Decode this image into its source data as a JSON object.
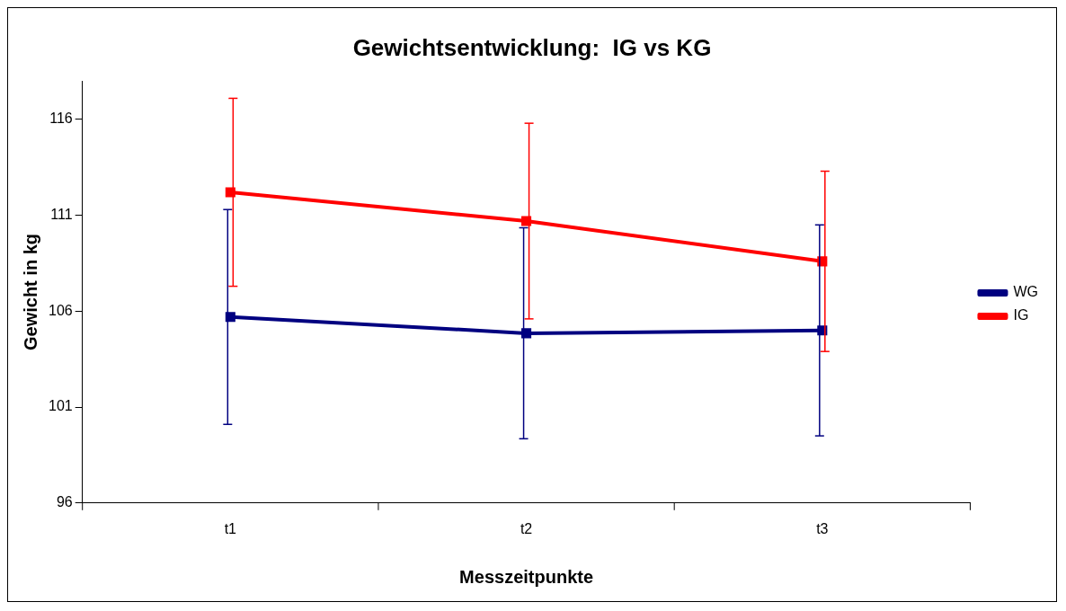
{
  "chart_data": {
    "type": "line",
    "title": "Gewichtsentwicklung:  IG vs KG",
    "xlabel": "Messzeitpunkte",
    "ylabel": "Gewicht in kg",
    "categories": [
      "t1",
      "t2",
      "t3"
    ],
    "series": [
      {
        "name": "WG",
        "color": "#000080",
        "values": [
          105.7,
          104.85,
          105.0
        ],
        "errors": [
          5.6,
          5.5,
          5.5
        ]
      },
      {
        "name": "IG",
        "color": "#ff0000",
        "values": [
          112.2,
          110.7,
          108.6
        ],
        "errors": [
          4.9,
          5.1,
          4.7
        ]
      }
    ],
    "ylim": [
      96,
      118
    ],
    "yticks": [
      96,
      101,
      106,
      111,
      116
    ],
    "grid": false,
    "legend": "right",
    "marker": "square",
    "line_style": "solid"
  }
}
